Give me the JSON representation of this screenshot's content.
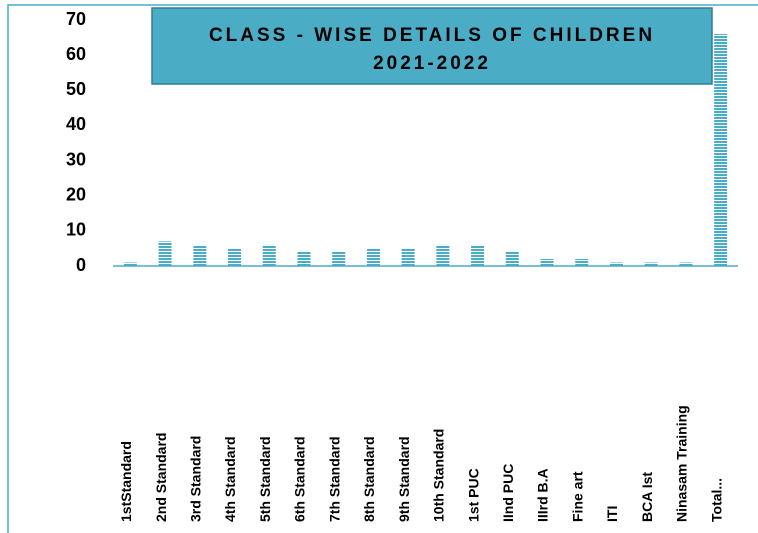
{
  "chart_data": {
    "type": "bar",
    "title": "CLASS - WISE DETAILS OF CHILDREN",
    "subtitle": "2021-2022",
    "categories": [
      "1stStandard",
      "2nd Standard",
      "3rd Standard",
      "4th Standard",
      "5th Standard",
      "6th Standard",
      "7th Standard",
      "8th Standard",
      "9th Standard",
      "10th Standard",
      "1st PUC",
      "IInd PUC",
      "IIIrd  B.A",
      "Fine art",
      "ITI",
      "BCA Ist",
      "Ninasam Training",
      "Total..."
    ],
    "values": [
      1,
      7,
      6,
      5,
      6,
      4,
      4,
      5,
      5,
      6,
      6,
      4,
      2,
      2,
      1,
      1,
      1,
      66
    ],
    "color": "#4bacc6",
    "ylim": [
      0,
      70
    ],
    "yticks": [
      0,
      10,
      20,
      30,
      40,
      50,
      60,
      70
    ],
    "grid": false
  }
}
